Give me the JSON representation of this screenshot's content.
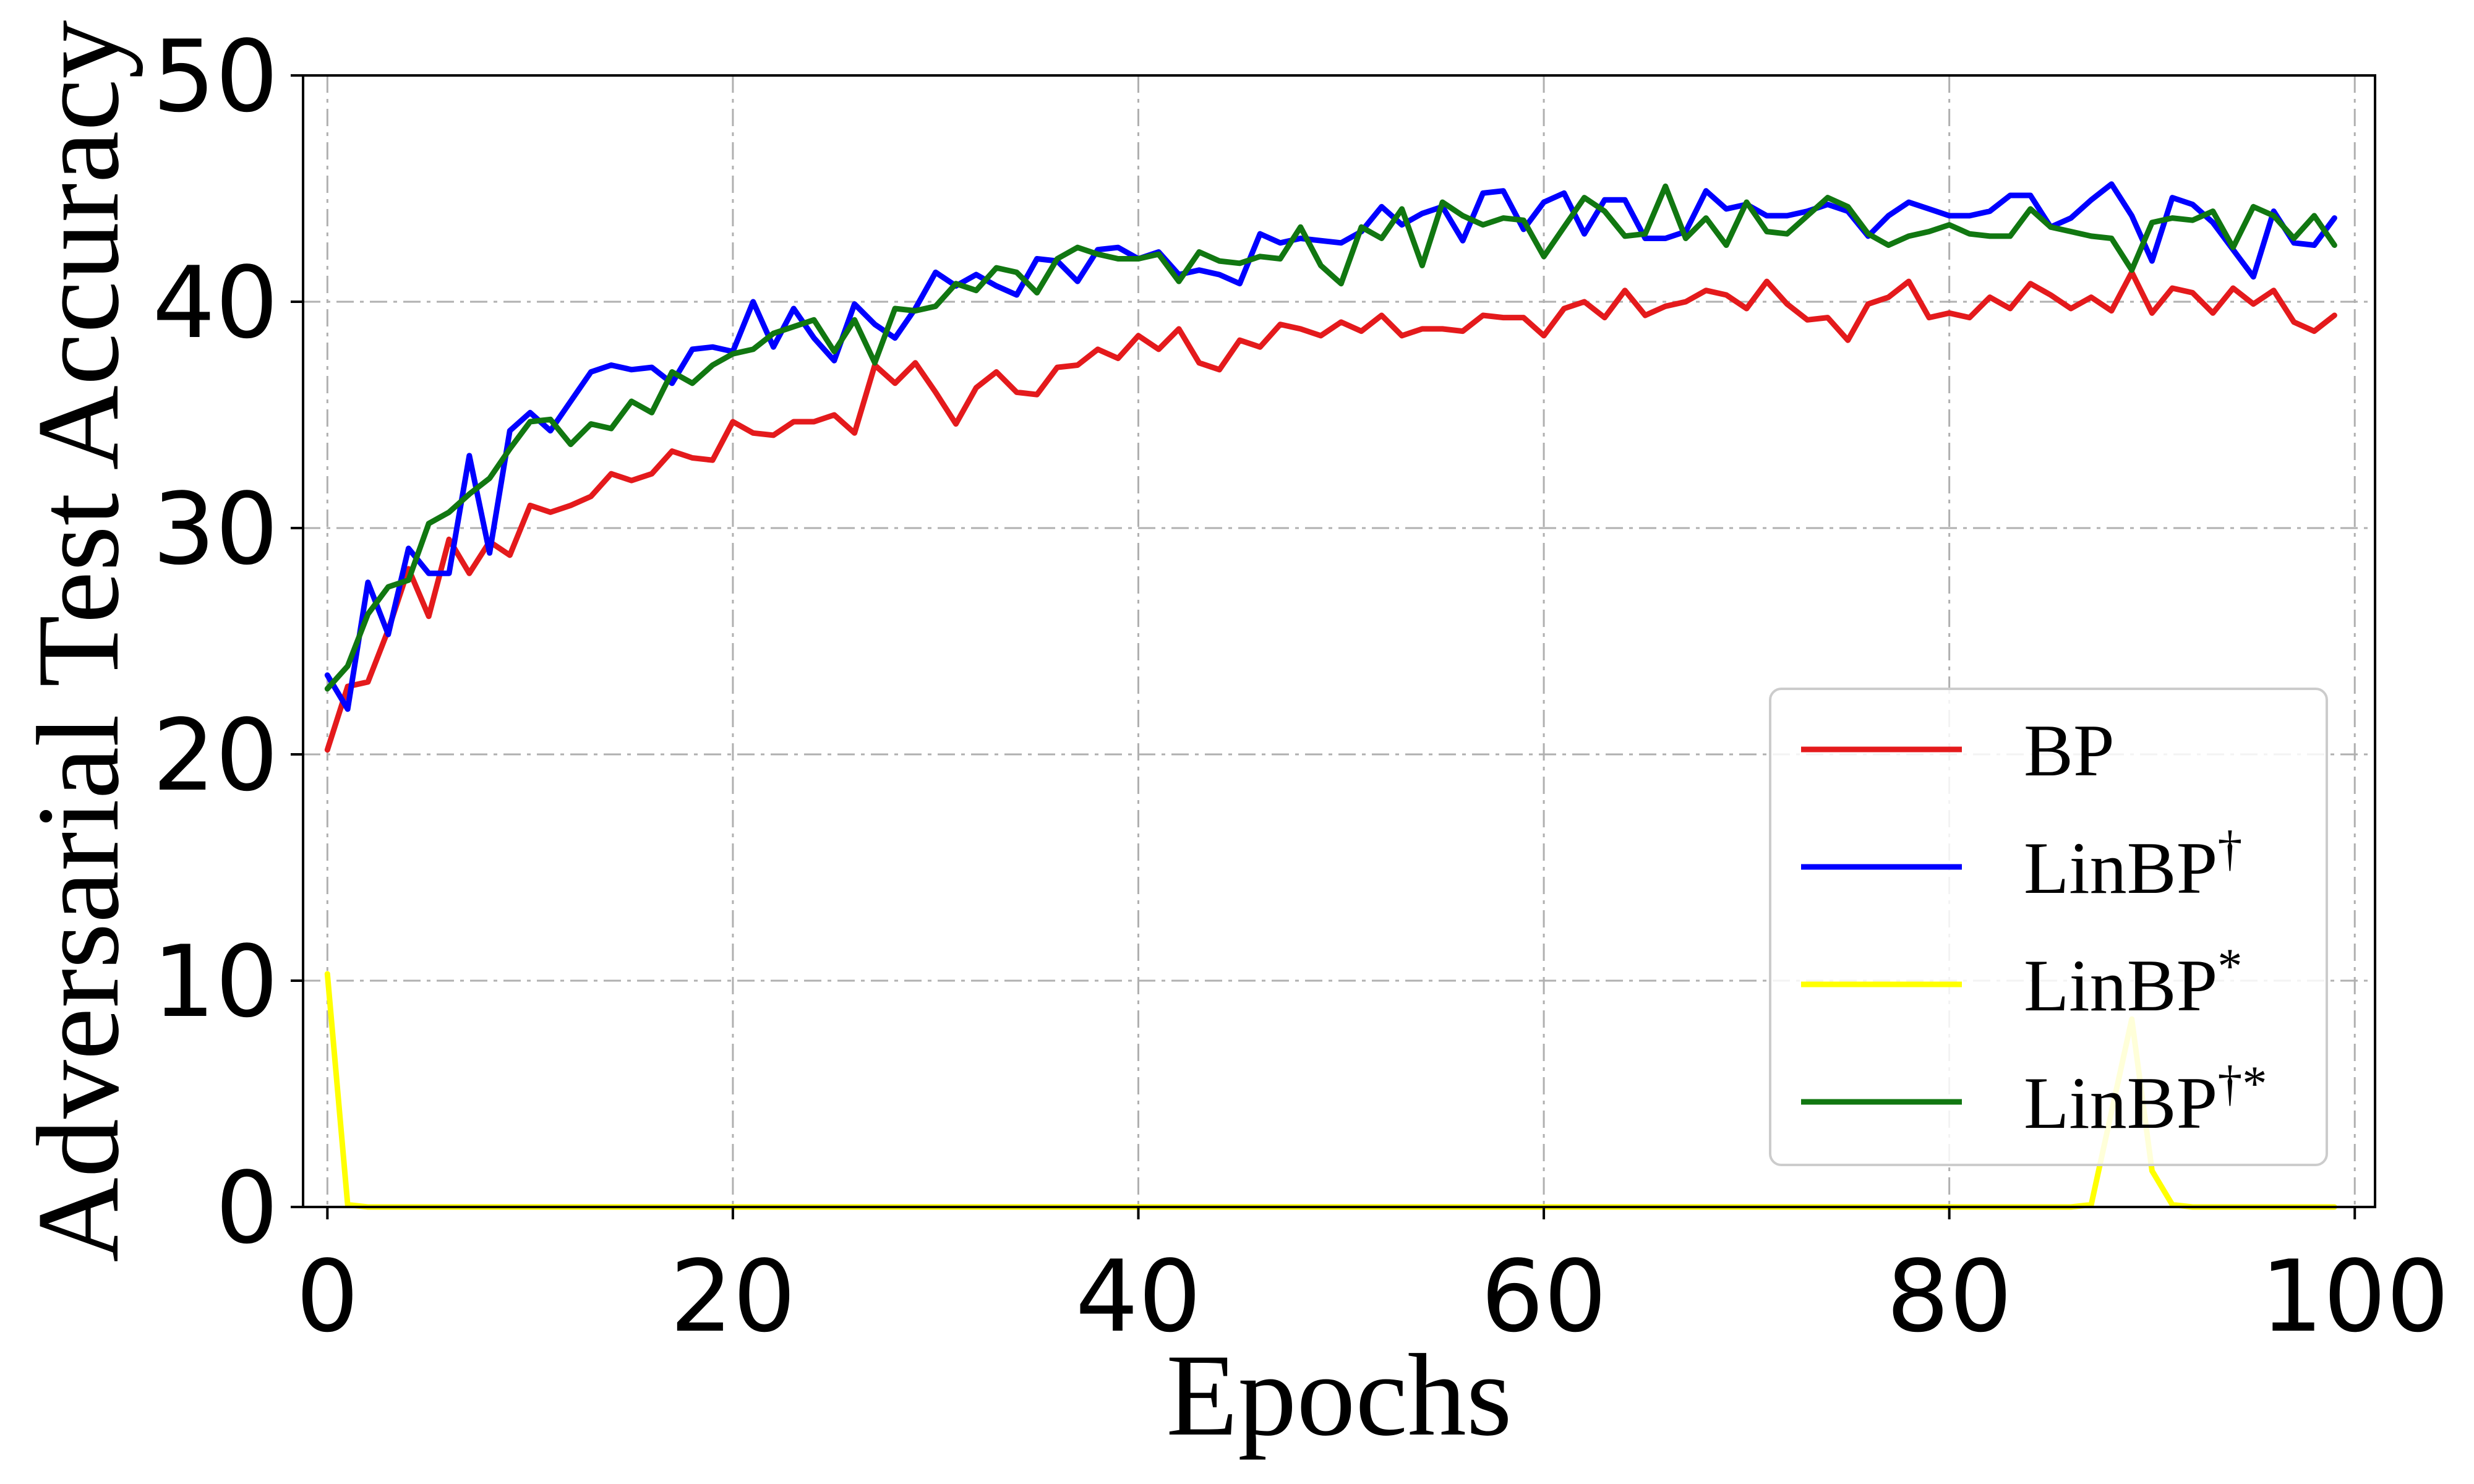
{
  "chart_data": {
    "type": "line",
    "title": "",
    "xlabel": "Epochs",
    "ylabel": "Adversarial Test Accuracy",
    "xlim": [
      -1.2,
      101
    ],
    "ylim": [
      0,
      50
    ],
    "xticks": [
      0,
      20,
      40,
      60,
      80,
      100
    ],
    "yticks": [
      0,
      10,
      20,
      30,
      40,
      50
    ],
    "grid": true,
    "legend_position": "lower-right",
    "series": [
      {
        "name": "BP",
        "sup": "",
        "color": "#e41a1c",
        "values": [
          20.2,
          23.0,
          23.2,
          25.5,
          28.2,
          26.1,
          29.5,
          28.0,
          29.4,
          28.8,
          31.0,
          30.7,
          31.0,
          31.4,
          32.4,
          32.1,
          32.4,
          33.4,
          33.1,
          33.0,
          34.7,
          34.2,
          34.1,
          34.7,
          34.7,
          35.0,
          34.2,
          37.2,
          36.4,
          37.3,
          36.0,
          34.6,
          36.2,
          36.9,
          36.0,
          35.9,
          37.1,
          37.2,
          37.9,
          37.5,
          38.5,
          37.9,
          38.8,
          37.3,
          37.0,
          38.3,
          38.0,
          39.0,
          38.8,
          38.5,
          39.1,
          38.7,
          39.4,
          38.5,
          38.8,
          38.8,
          38.7,
          39.4,
          39.3,
          39.3,
          38.5,
          39.7,
          40.0,
          39.3,
          40.5,
          39.4,
          39.8,
          40.0,
          40.5,
          40.3,
          39.7,
          40.9,
          39.9,
          39.2,
          39.3,
          38.3,
          39.9,
          40.2,
          40.9,
          39.3,
          39.5,
          39.3,
          40.2,
          39.7,
          40.8,
          40.3,
          39.7,
          40.2,
          39.6,
          41.3,
          39.5,
          40.6,
          40.4,
          39.5,
          40.6,
          39.9,
          40.5,
          39.1,
          38.7,
          39.4
        ]
      },
      {
        "name": "LinBP",
        "sup": "†",
        "color": "#0000ff",
        "values": [
          23.5,
          22.0,
          27.6,
          25.3,
          29.1,
          28.0,
          28.0,
          33.2,
          28.9,
          34.3,
          35.1,
          34.3,
          35.6,
          36.9,
          37.2,
          37.0,
          37.1,
          36.4,
          37.9,
          38.0,
          37.8,
          40.0,
          38.0,
          39.7,
          38.4,
          37.4,
          39.9,
          39.0,
          38.4,
          39.7,
          41.3,
          40.7,
          41.2,
          40.7,
          40.3,
          41.9,
          41.8,
          40.9,
          42.3,
          42.4,
          41.9,
          42.2,
          41.2,
          41.4,
          41.2,
          40.8,
          43.0,
          42.6,
          42.8,
          42.7,
          42.6,
          43.1,
          44.2,
          43.4,
          43.9,
          44.2,
          42.7,
          44.8,
          44.9,
          43.2,
          44.4,
          44.8,
          43.0,
          44.5,
          44.5,
          42.8,
          42.8,
          43.1,
          44.9,
          44.1,
          44.3,
          43.8,
          43.8,
          44.0,
          44.3,
          44.0,
          42.9,
          43.8,
          44.4,
          44.1,
          43.8,
          43.8,
          44.0,
          44.7,
          44.7,
          43.3,
          43.7,
          44.5,
          45.2,
          43.8,
          41.8,
          44.6,
          44.3,
          43.5,
          42.3,
          41.1,
          44.0,
          42.6,
          42.5,
          43.7
        ]
      },
      {
        "name": "LinBP",
        "sup": "*",
        "color": "#ffff00",
        "values": [
          10.3,
          0.1,
          0,
          0,
          0,
          0,
          0,
          0,
          0,
          0,
          0,
          0,
          0,
          0,
          0,
          0,
          0,
          0,
          0,
          0,
          0,
          0,
          0,
          0,
          0,
          0,
          0,
          0,
          0,
          0,
          0,
          0,
          0,
          0,
          0,
          0,
          0,
          0,
          0,
          0,
          0,
          0,
          0,
          0,
          0,
          0,
          0,
          0,
          0,
          0,
          0,
          0,
          0,
          0,
          0,
          0,
          0,
          0,
          0,
          0,
          0,
          0,
          0,
          0,
          0,
          0,
          0,
          0,
          0,
          0,
          0,
          0,
          0,
          0,
          0,
          0,
          0,
          0,
          0,
          0,
          0,
          0,
          0,
          0,
          0,
          0,
          0,
          0.1,
          4.2,
          8.3,
          1.6,
          0.1,
          0,
          0,
          0,
          0,
          0,
          0,
          0,
          0
        ]
      },
      {
        "name": "LinBP",
        "sup": "†*",
        "color": "#117711",
        "values": [
          22.9,
          23.9,
          26.2,
          27.4,
          27.7,
          30.2,
          30.7,
          31.5,
          32.2,
          33.5,
          34.7,
          34.8,
          33.7,
          34.6,
          34.4,
          35.6,
          35.1,
          36.9,
          36.4,
          37.2,
          37.7,
          37.9,
          38.6,
          38.9,
          39.2,
          37.8,
          39.2,
          37.3,
          39.7,
          39.6,
          39.8,
          40.8,
          40.5,
          41.5,
          41.3,
          40.4,
          41.9,
          42.4,
          42.1,
          41.9,
          41.9,
          42.1,
          40.9,
          42.2,
          41.8,
          41.7,
          42.0,
          41.9,
          43.3,
          41.6,
          40.8,
          43.3,
          42.8,
          44.1,
          41.6,
          44.4,
          43.8,
          43.4,
          43.7,
          43.6,
          42.0,
          43.3,
          44.6,
          44.0,
          42.9,
          43.0,
          45.1,
          42.8,
          43.7,
          42.5,
          44.4,
          43.1,
          43.0,
          43.8,
          44.6,
          44.2,
          43.0,
          42.5,
          42.9,
          43.1,
          43.4,
          43.0,
          42.9,
          42.9,
          44.1,
          43.3,
          43.1,
          42.9,
          42.8,
          41.4,
          43.5,
          43.7,
          43.6,
          44.0,
          42.4,
          44.2,
          43.8,
          42.8,
          43.8,
          42.5
        ]
      }
    ]
  }
}
